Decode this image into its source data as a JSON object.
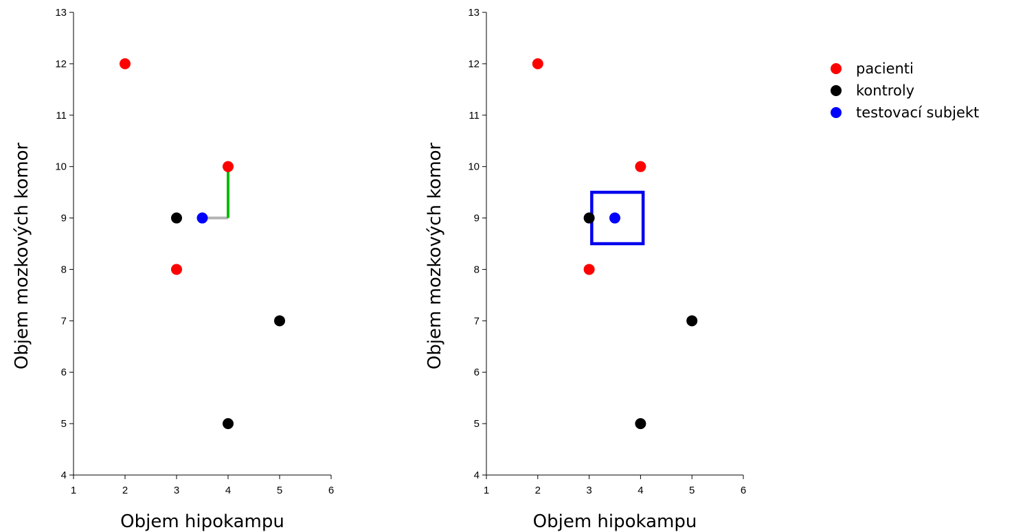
{
  "chart_data": [
    {
      "type": "scatter",
      "xlabel": "Objem hipokampu",
      "ylabel": "Objem mozkových komor",
      "xlim": [
        1,
        6
      ],
      "ylim": [
        4,
        13
      ],
      "xticks": [
        1,
        2,
        3,
        4,
        5,
        6
      ],
      "yticks": [
        4,
        5,
        6,
        7,
        8,
        9,
        10,
        11,
        12,
        13
      ],
      "grid": false,
      "series": [
        {
          "name": "pacienti",
          "color": "#ff0000",
          "points": [
            [
              2,
              12
            ],
            [
              4,
              10
            ],
            [
              3,
              8
            ]
          ]
        },
        {
          "name": "kontroly",
          "color": "#000000",
          "points": [
            [
              3,
              9
            ],
            [
              5,
              7
            ],
            [
              4,
              5
            ]
          ]
        },
        {
          "name": "testovací subjekt",
          "color": "#0000ff",
          "points": [
            [
              3.5,
              9
            ]
          ]
        }
      ],
      "annotations": [
        {
          "kind": "segment",
          "color": "#b3b3b3",
          "from": [
            3.5,
            9
          ],
          "to": [
            4,
            9
          ]
        },
        {
          "kind": "segment",
          "color": "#00bb00",
          "from": [
            4,
            9
          ],
          "to": [
            4,
            10
          ]
        }
      ]
    },
    {
      "type": "scatter",
      "xlabel": "Objem hipokampu",
      "ylabel": "Objem mozkových komor",
      "xlim": [
        1,
        6
      ],
      "ylim": [
        4,
        13
      ],
      "xticks": [
        1,
        2,
        3,
        4,
        5,
        6
      ],
      "yticks": [
        4,
        5,
        6,
        7,
        8,
        9,
        10,
        11,
        12,
        13
      ],
      "grid": false,
      "series": [
        {
          "name": "pacienti",
          "color": "#ff0000",
          "points": [
            [
              2,
              12
            ],
            [
              4,
              10
            ],
            [
              3,
              8
            ]
          ]
        },
        {
          "name": "kontroly",
          "color": "#000000",
          "points": [
            [
              3,
              9
            ],
            [
              5,
              7
            ],
            [
              4,
              5
            ]
          ]
        },
        {
          "name": "testovací subjekt",
          "color": "#0000ff",
          "points": [
            [
              3.5,
              9
            ]
          ]
        }
      ],
      "annotations": [
        {
          "kind": "box",
          "color": "#0000ee",
          "x": [
            3.05,
            4.05
          ],
          "y": [
            8.5,
            9.5
          ]
        }
      ]
    }
  ],
  "legend": {
    "position": "right",
    "entries": [
      {
        "label": "pacienti",
        "color": "#ff0000"
      },
      {
        "label": "kontroly",
        "color": "#000000"
      },
      {
        "label": "testovací subjekt",
        "color": "#0000ff"
      }
    ]
  }
}
